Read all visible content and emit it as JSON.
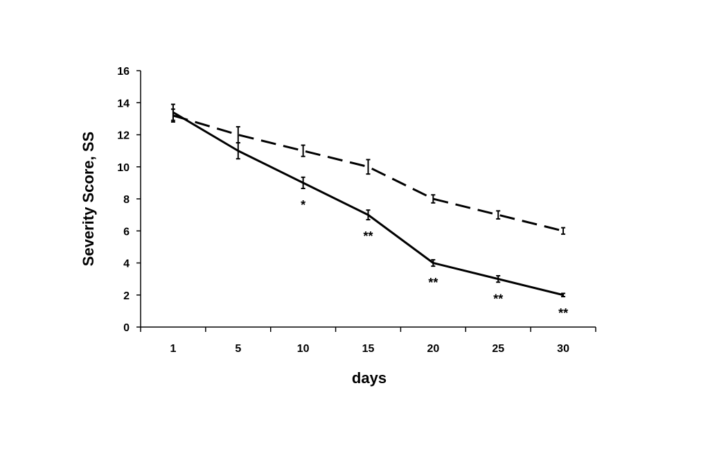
{
  "chart_data": {
    "type": "line",
    "title": "",
    "xlabel": "days",
    "ylabel": "Severity Score, SS",
    "categories": [
      "1",
      "5",
      "10",
      "15",
      "20",
      "25",
      "30"
    ],
    "ylim": [
      0,
      16
    ],
    "yticks": [
      0,
      2,
      4,
      6,
      8,
      10,
      12,
      14,
      16
    ],
    "grid": false,
    "legend": "none",
    "series": [
      {
        "style": "solid",
        "color": "#000000",
        "values": [
          13.4,
          11.0,
          9.0,
          7.0,
          4.0,
          3.0,
          2.0
        ],
        "errors": [
          0.5,
          0.5,
          0.35,
          0.3,
          0.2,
          0.2,
          0.1
        ]
      },
      {
        "style": "dashed",
        "color": "#000000",
        "values": [
          13.2,
          12.0,
          11.0,
          10.0,
          8.0,
          7.0,
          6.0
        ],
        "errors": [
          0.4,
          0.5,
          0.35,
          0.45,
          0.25,
          0.25,
          0.2
        ]
      }
    ],
    "annotations": [
      "",
      "",
      "*",
      "**",
      "**",
      "**",
      "**"
    ]
  }
}
